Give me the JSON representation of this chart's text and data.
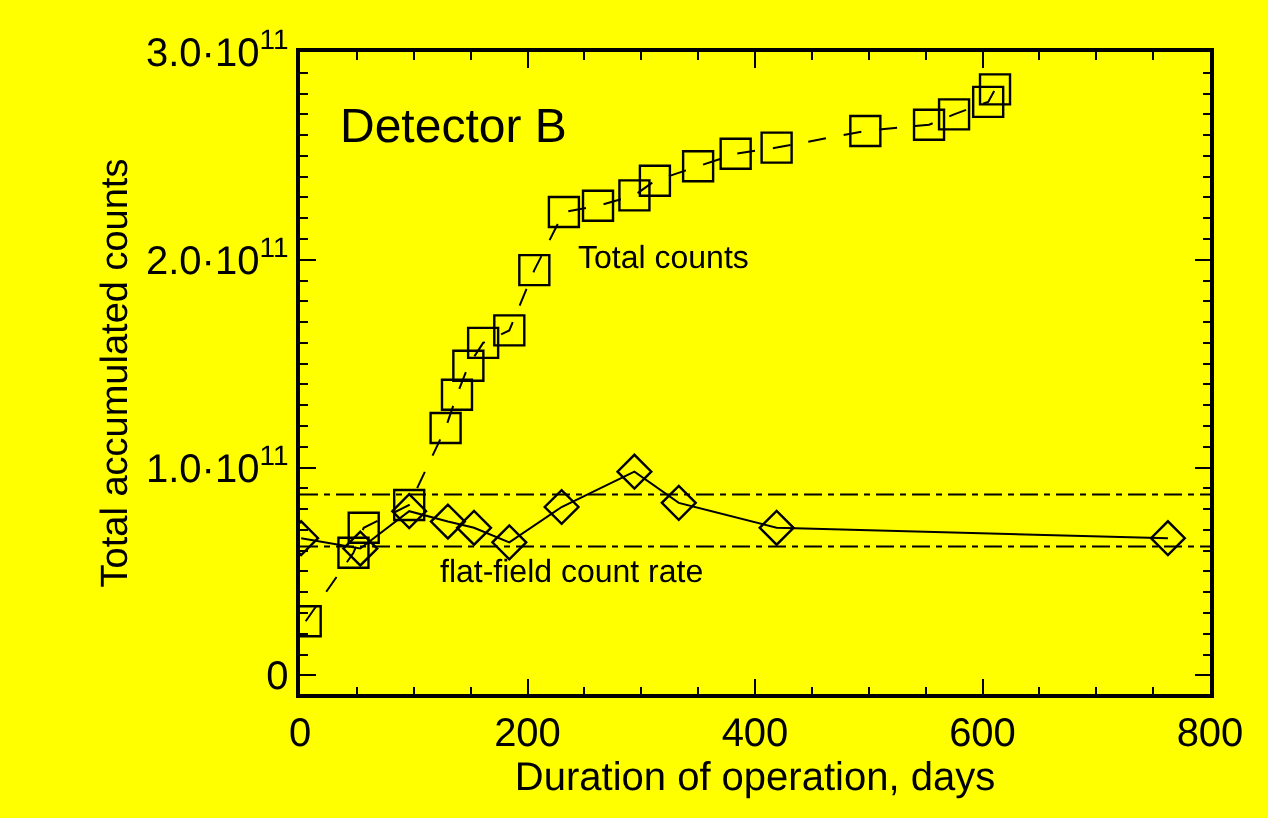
{
  "chart_data": {
    "type": "line",
    "xlabel": "Duration of operation, days",
    "ylabel": "Total accumulated counts",
    "annotations": [
      "Detector B"
    ],
    "series": [
      {
        "name": "Total counts",
        "color": "#000000",
        "marker": "square",
        "line_style": "dashed",
        "x": [
          5,
          47,
          56,
          96,
          128,
          138,
          148,
          161,
          184,
          206,
          232,
          262,
          294,
          312,
          350,
          383,
          419,
          497,
          553,
          575,
          605,
          611
        ],
        "values": [
          26000000000.0,
          59000000000.0,
          71000000000.0,
          82000000000.0,
          119000000000.0,
          135000000000.0,
          149000000000.0,
          160000000000.0,
          166000000000.0,
          195000000000.0,
          223000000000.0,
          226000000000.0,
          231000000000.0,
          238000000000.0,
          245000000000.0,
          251000000000.0,
          254000000000.0,
          262000000000.0,
          265000000000.0,
          270000000000.0,
          276000000000.0,
          282000000000.0
        ]
      },
      {
        "name": "flat-field count rate",
        "color": "#000000",
        "marker": "diamond",
        "line_style": "solid",
        "x": [
          1,
          53,
          96,
          130,
          153,
          184,
          230,
          294,
          333,
          419,
          763
        ],
        "values": [
          66000000000.0,
          61000000000.0,
          79000000000.0,
          74000000000.0,
          71000000000.0,
          64000000000.0,
          81000000000.0,
          98000000000.0,
          83000000000.0,
          71000000000.0,
          66000000000.0
        ]
      }
    ],
    "ref_lines": [
      {
        "axis": "y",
        "value": 87000000000.0,
        "label": null,
        "color": "#000000",
        "line_style": "dashdot"
      },
      {
        "axis": "y",
        "value": 62000000000.0,
        "label": null,
        "color": "#000000",
        "line_style": "dashdot"
      }
    ],
    "xlim": [
      0,
      800
    ],
    "xticks": [
      0,
      200,
      400,
      600,
      800
    ],
    "ylim": [
      -9000000000.0,
      300000000000.0
    ],
    "yticks": [
      {
        "value": 0,
        "label": "0"
      },
      {
        "value": 100000000000.0,
        "label": "1.0·10$^{11}$"
      },
      {
        "value": 200000000000.0,
        "label": "2.0·10$^{11}$"
      },
      {
        "value": 300000000000.0,
        "label": "3.0·10$^{11}$"
      }
    ],
    "grid": false,
    "legend": false
  }
}
